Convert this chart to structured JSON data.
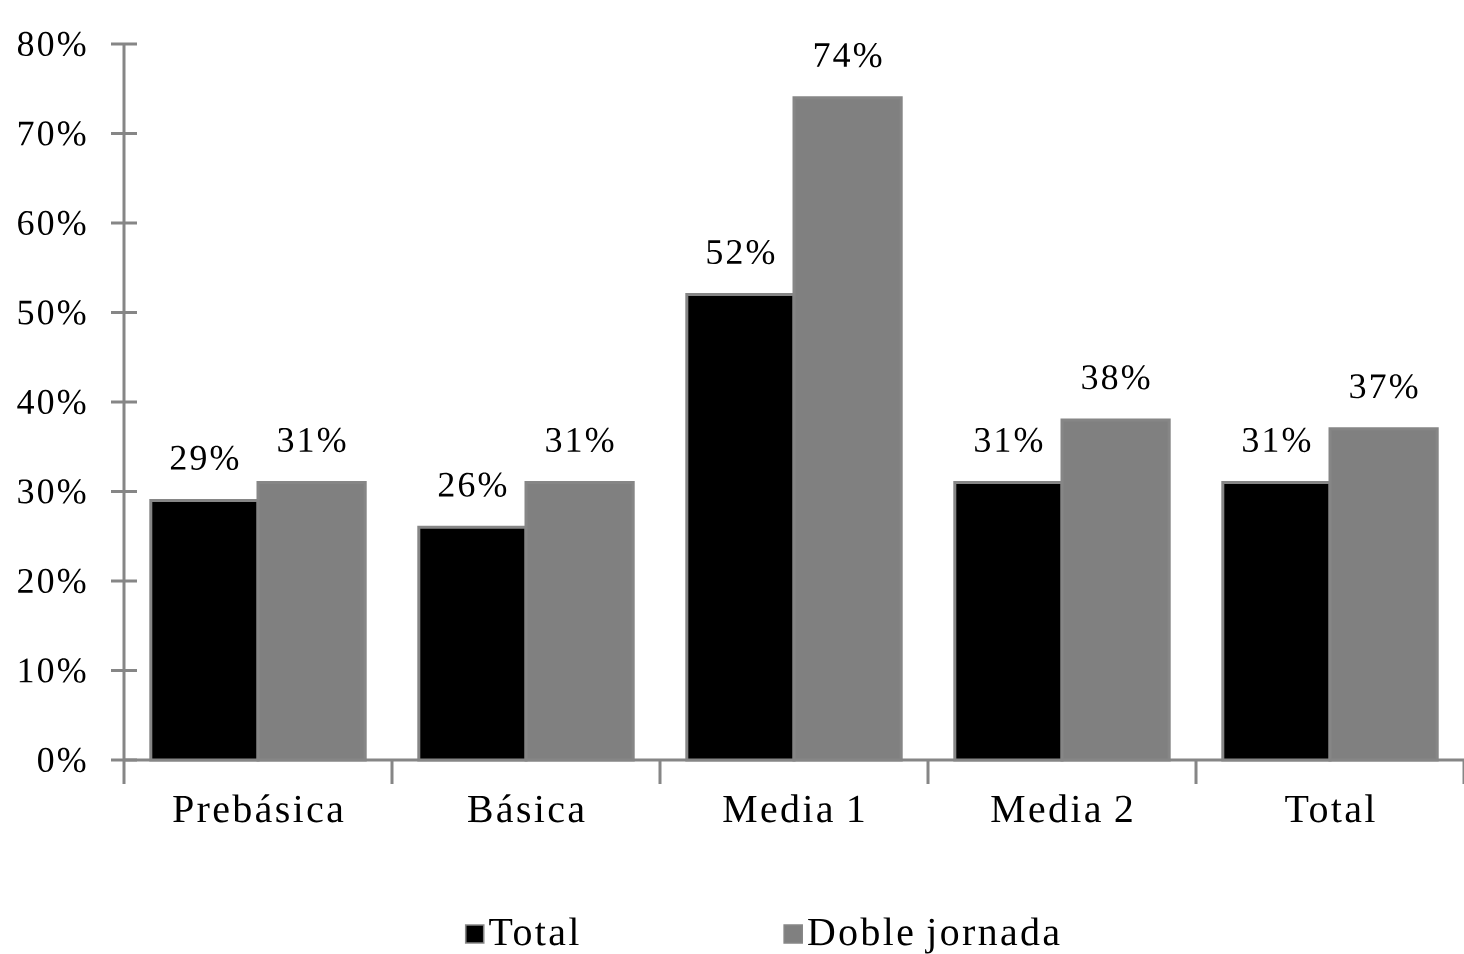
{
  "chart_data": {
    "type": "bar",
    "categories": [
      "Prebásica",
      "Básica",
      "Media 1",
      "Media 2",
      "Total"
    ],
    "series": [
      {
        "name": "Total",
        "color": "#000000",
        "values": [
          29,
          26,
          52,
          31,
          31
        ],
        "value_labels": [
          "29%",
          "26%",
          "52%",
          "31%",
          "31%"
        ]
      },
      {
        "name": "Doble jornada",
        "color": "#808080",
        "values": [
          31,
          31,
          74,
          38,
          37
        ],
        "value_labels": [
          "31%",
          "31%",
          "74%",
          "38%",
          "37%"
        ]
      }
    ],
    "ylim": [
      0,
      80
    ],
    "yticks": [
      {
        "value": 0,
        "label": "0%"
      },
      {
        "value": 10,
        "label": "10%"
      },
      {
        "value": 20,
        "label": "20%"
      },
      {
        "value": 30,
        "label": "30%"
      },
      {
        "value": 40,
        "label": "40%"
      },
      {
        "value": 50,
        "label": "50%"
      },
      {
        "value": 60,
        "label": "60%"
      },
      {
        "value": 70,
        "label": "70%"
      },
      {
        "value": 80,
        "label": "80%"
      }
    ],
    "grid": false,
    "legend": "bottom"
  }
}
